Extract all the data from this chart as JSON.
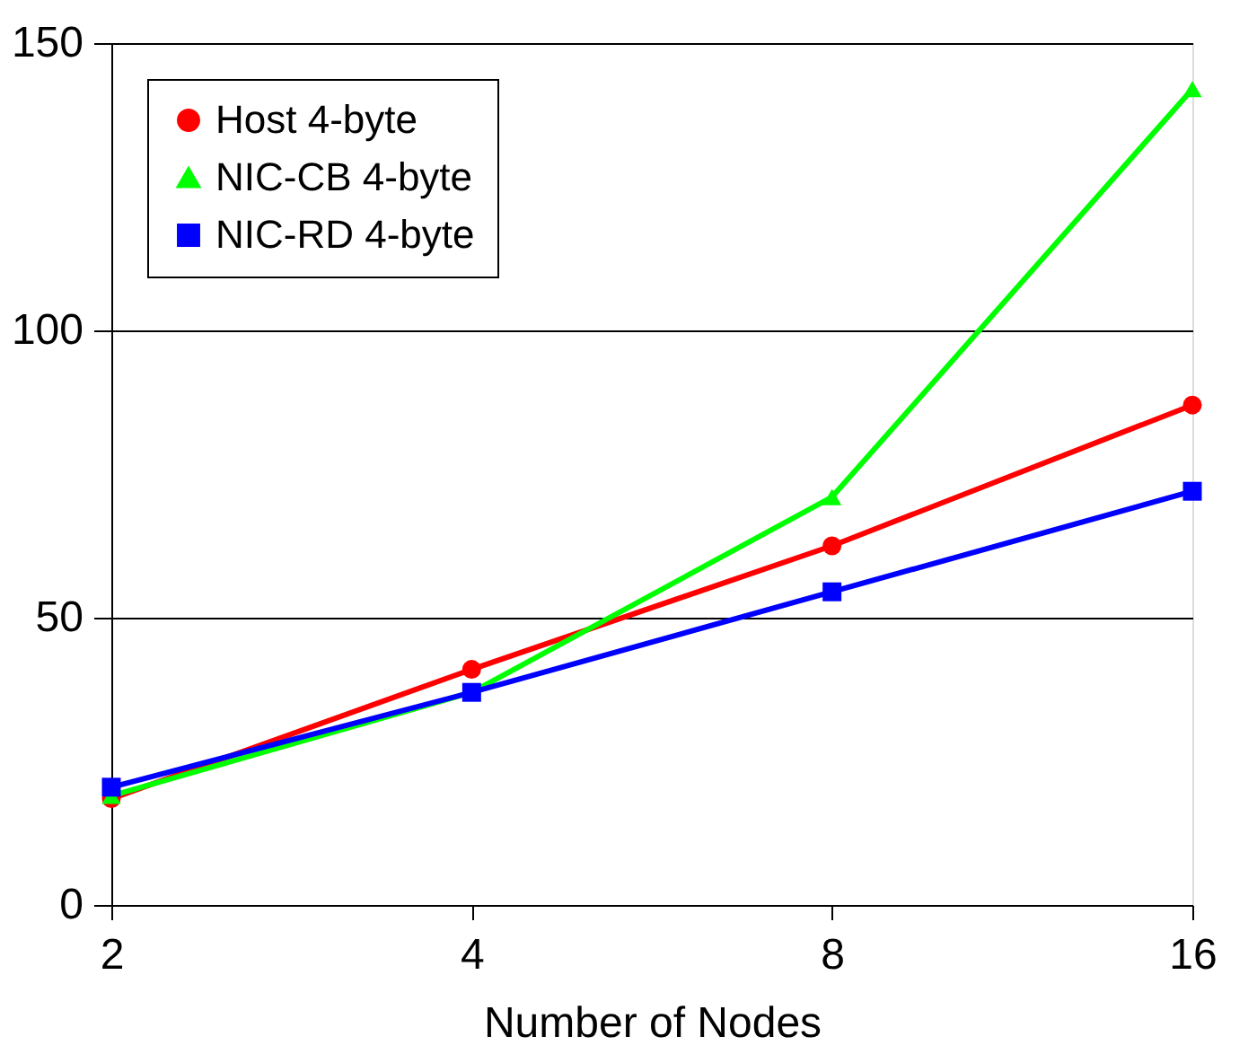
{
  "chart_data": {
    "type": "line",
    "xlabel": "Number of Nodes",
    "categories": [
      "2",
      "4",
      "8",
      "16"
    ],
    "series": [
      {
        "name": "Host 4-byte",
        "color": "#ff0000",
        "marker": "circle",
        "values": [
          18.5,
          41,
          62.5,
          87
        ]
      },
      {
        "name": "NIC-CB 4-byte",
        "color": "#00ff00",
        "marker": "triangle",
        "values": [
          19,
          37,
          71,
          142
        ]
      },
      {
        "name": "NIC-RD 4-byte",
        "color": "#0000ff",
        "marker": "square",
        "values": [
          20.5,
          37,
          54.5,
          72
        ]
      }
    ],
    "ylim": [
      0,
      150
    ],
    "yticks": [
      0,
      50,
      100,
      150
    ],
    "grid": "y",
    "legend": "top left",
    "line_style": "solid"
  }
}
